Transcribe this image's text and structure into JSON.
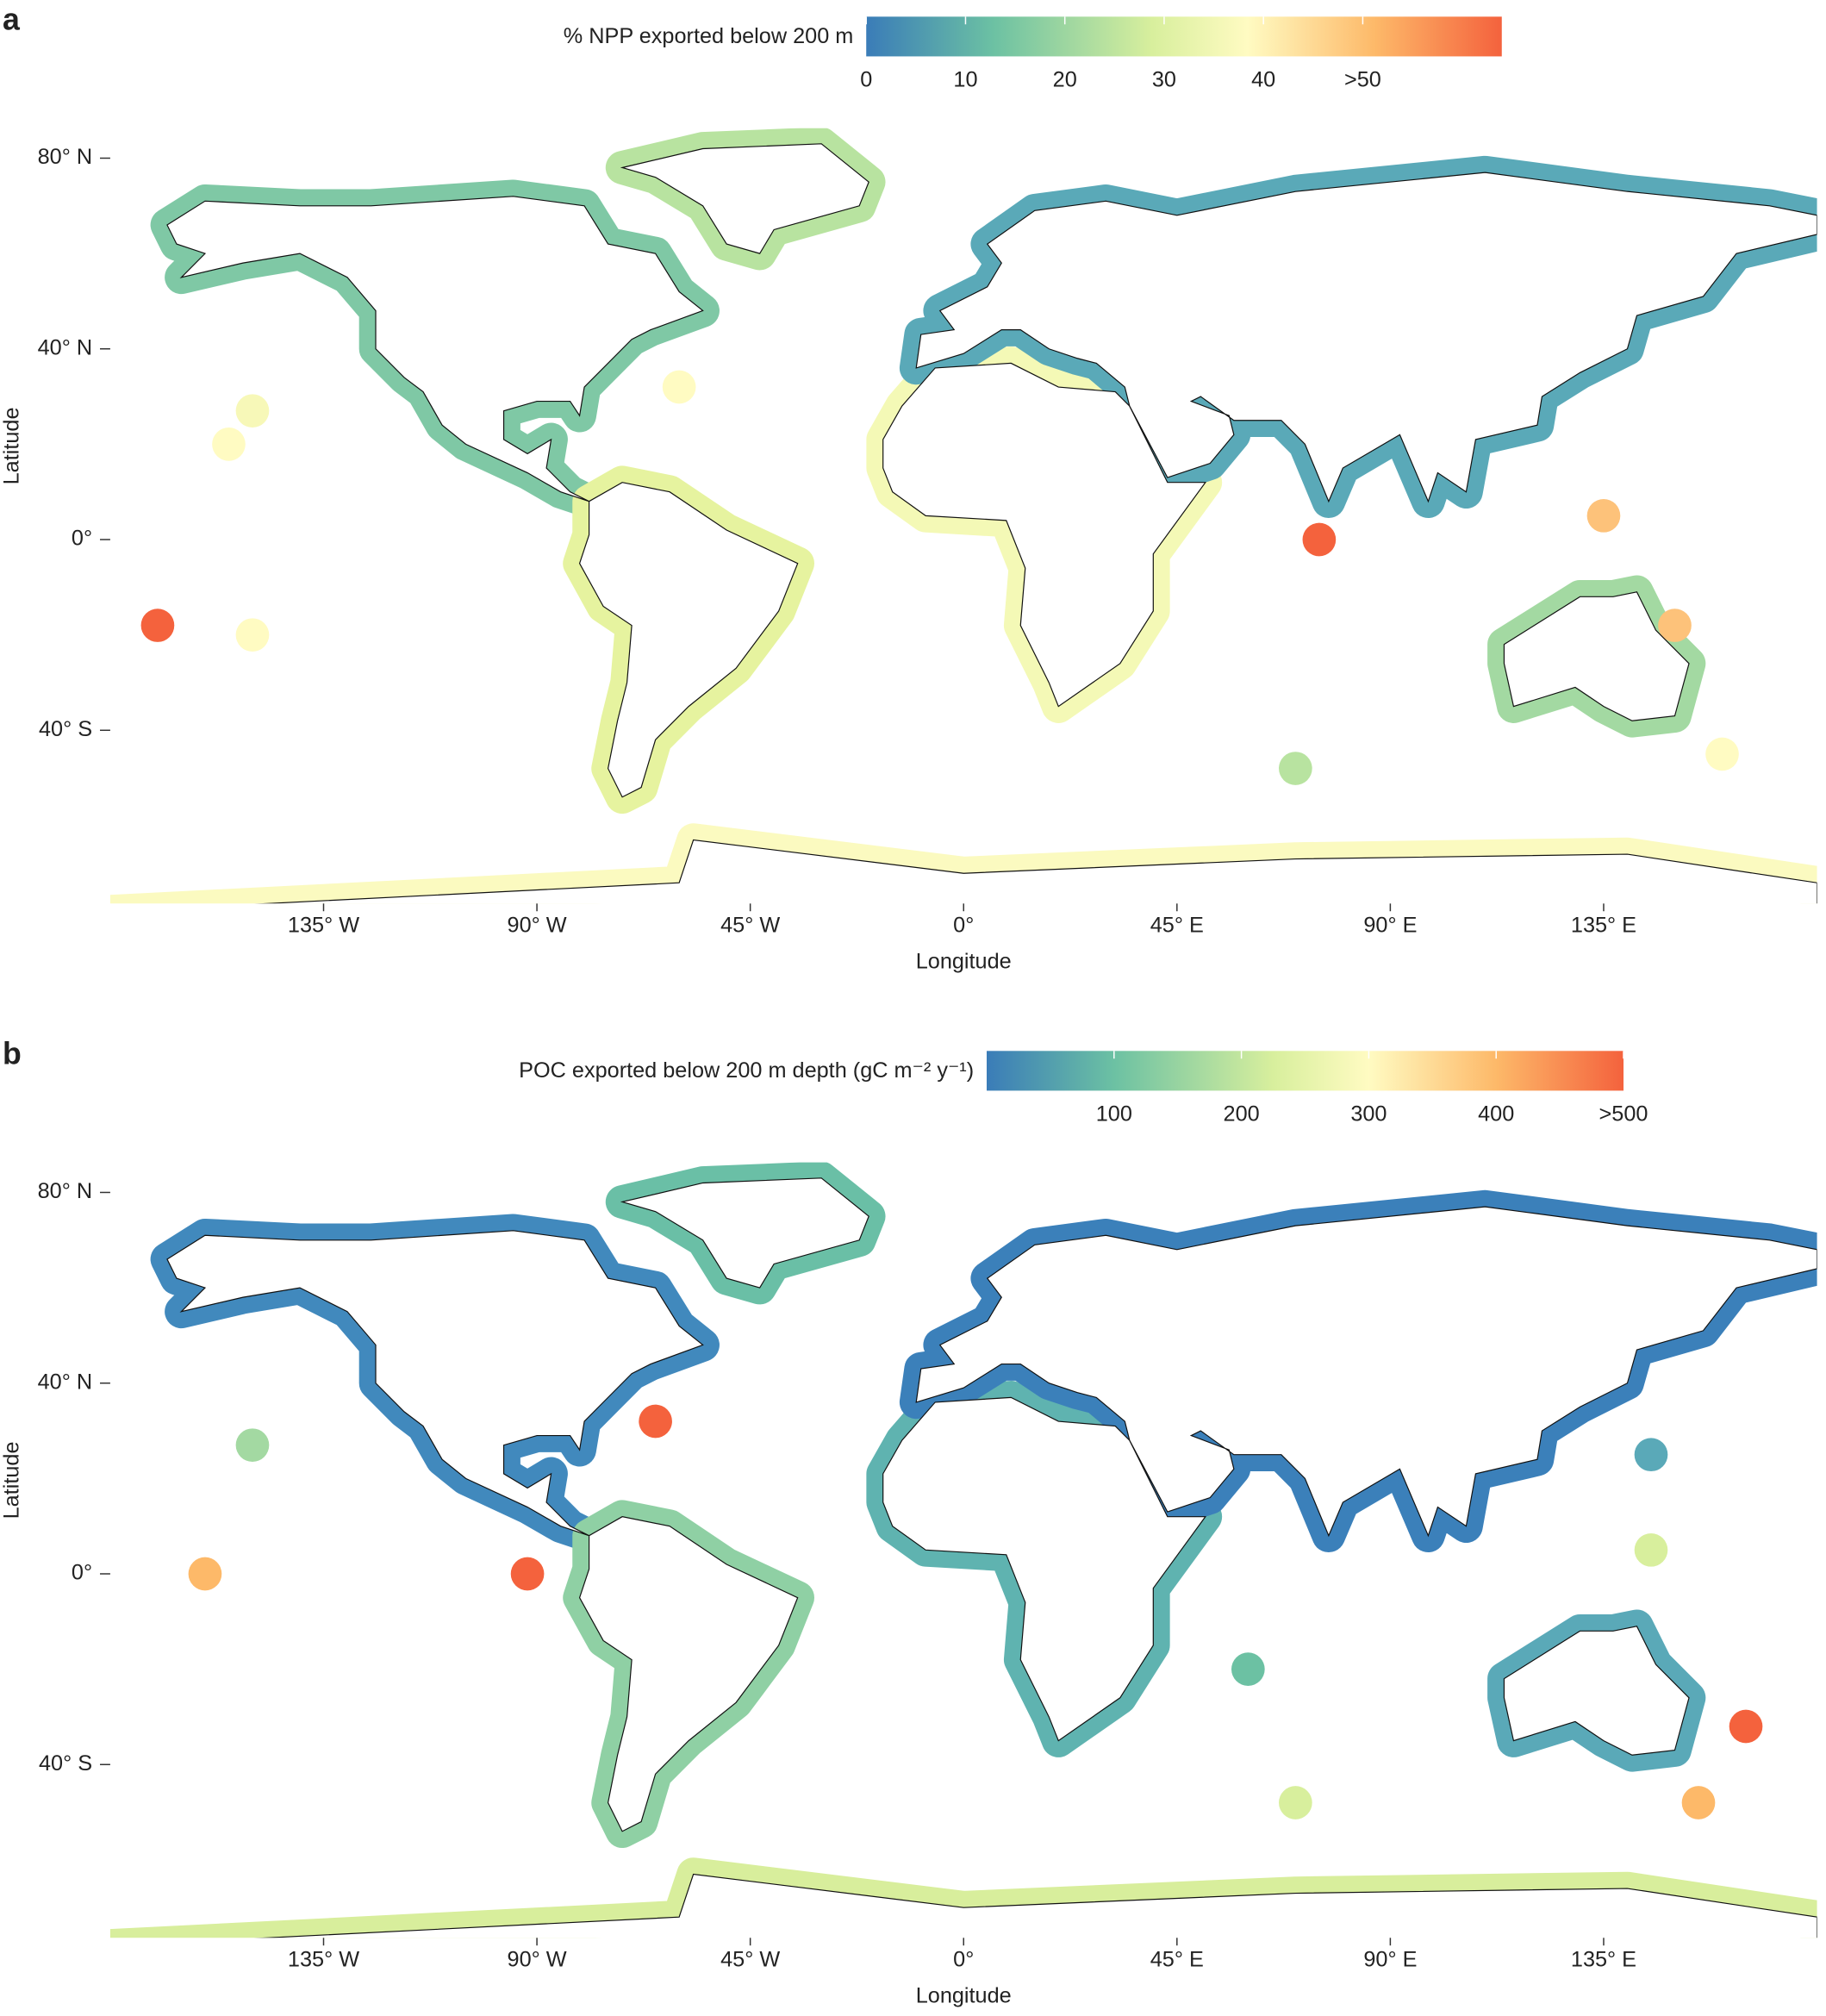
{
  "panels": [
    {
      "label": "a",
      "colorbar": {
        "title": "% NPP exported below 200 m",
        "lim": [
          0,
          64
        ],
        "ticks": [
          0,
          10,
          20,
          30,
          40,
          {
            "value": 50,
            "label": ">50"
          }
        ]
      },
      "latitude_ticks": [
        {
          "value": 80,
          "label": "80° N"
        },
        {
          "value": 40,
          "label": "40° N"
        },
        {
          "value": 0,
          "label": "0°"
        },
        {
          "value": -40,
          "label": "40° S"
        }
      ],
      "longitude_ticks": [
        {
          "value": -135,
          "label": "135° W"
        },
        {
          "value": -90,
          "label": "90° W"
        },
        {
          "value": -45,
          "label": "45° W"
        },
        {
          "value": 0,
          "label": "0°"
        },
        {
          "value": 45,
          "label": "45° E"
        },
        {
          "value": 90,
          "label": "90° E"
        },
        {
          "value": 135,
          "label": "135° E"
        }
      ],
      "x_label": "Longitude",
      "y_label": "Latitude"
    },
    {
      "label": "b",
      "colorbar": {
        "title": "POC exported below 200 m depth (gC m⁻² y⁻¹)",
        "lim": [
          0,
          500
        ],
        "ticks": [
          100,
          200,
          300,
          400,
          {
            "value": 500,
            "label": ">500"
          }
        ]
      },
      "latitude_ticks": [
        {
          "value": 80,
          "label": "80° N"
        },
        {
          "value": 40,
          "label": "40° N"
        },
        {
          "value": 0,
          "label": "0°"
        },
        {
          "value": -40,
          "label": "40° S"
        }
      ],
      "longitude_ticks": [
        {
          "value": -135,
          "label": "135° W"
        },
        {
          "value": -90,
          "label": "90° W"
        },
        {
          "value": -45,
          "label": "45° W"
        },
        {
          "value": 0,
          "label": "0°"
        },
        {
          "value": 45,
          "label": "45° E"
        },
        {
          "value": 90,
          "label": "90° E"
        },
        {
          "value": 135,
          "label": "135° E"
        }
      ],
      "x_label": "Longitude",
      "y_label": "Latitude"
    }
  ]
}
